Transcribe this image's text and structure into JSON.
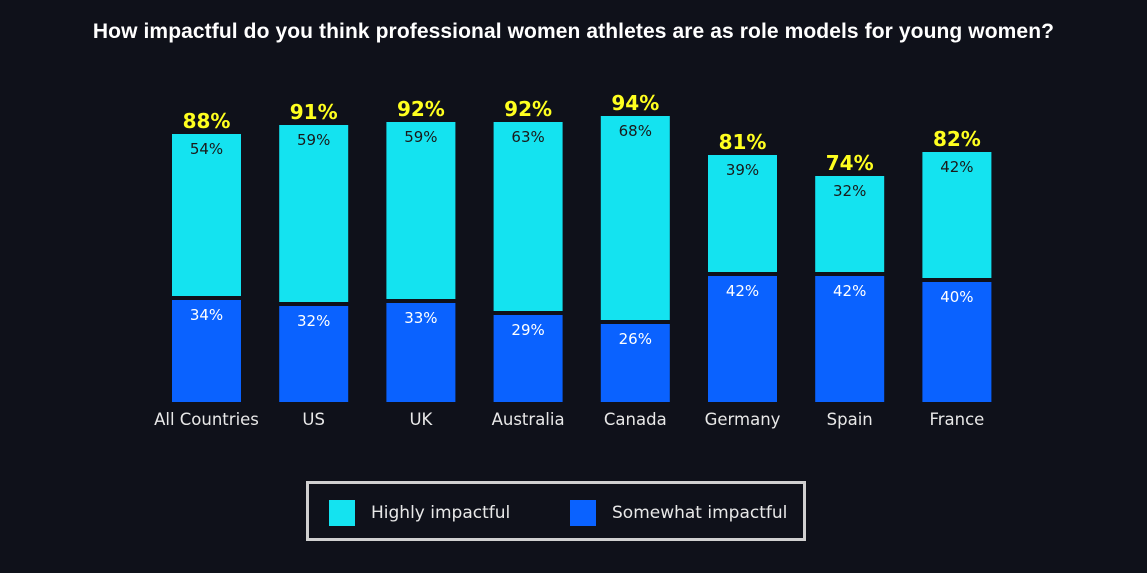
{
  "title": "How impactful do you think professional women athletes are as role models for young women?",
  "colors": {
    "background": "#0f111a",
    "highly": "#14e3f0",
    "somewhat": "#0a62ff",
    "total_label": "#ffff1f",
    "text": "#ffffff"
  },
  "chart_data": {
    "type": "bar",
    "stacked": true,
    "title": "How impactful do you think professional women athletes are as role models for young women?",
    "categories": [
      "All Countries",
      "US",
      "UK",
      "Australia",
      "Canada",
      "Germany",
      "Spain",
      "France"
    ],
    "series": [
      {
        "name": "Somewhat impactful",
        "values": [
          34,
          32,
          33,
          29,
          26,
          42,
          42,
          40
        ]
      },
      {
        "name": "Highly impactful",
        "values": [
          54,
          59,
          59,
          63,
          68,
          39,
          32,
          42
        ]
      }
    ],
    "totals": [
      88,
      91,
      92,
      92,
      94,
      81,
      74,
      82
    ],
    "value_suffix": "%",
    "legend": {
      "position": "bottom",
      "entries": [
        "Highly impactful",
        "Somewhat impactful"
      ]
    },
    "grid": false,
    "ylim": [
      0,
      100
    ]
  }
}
